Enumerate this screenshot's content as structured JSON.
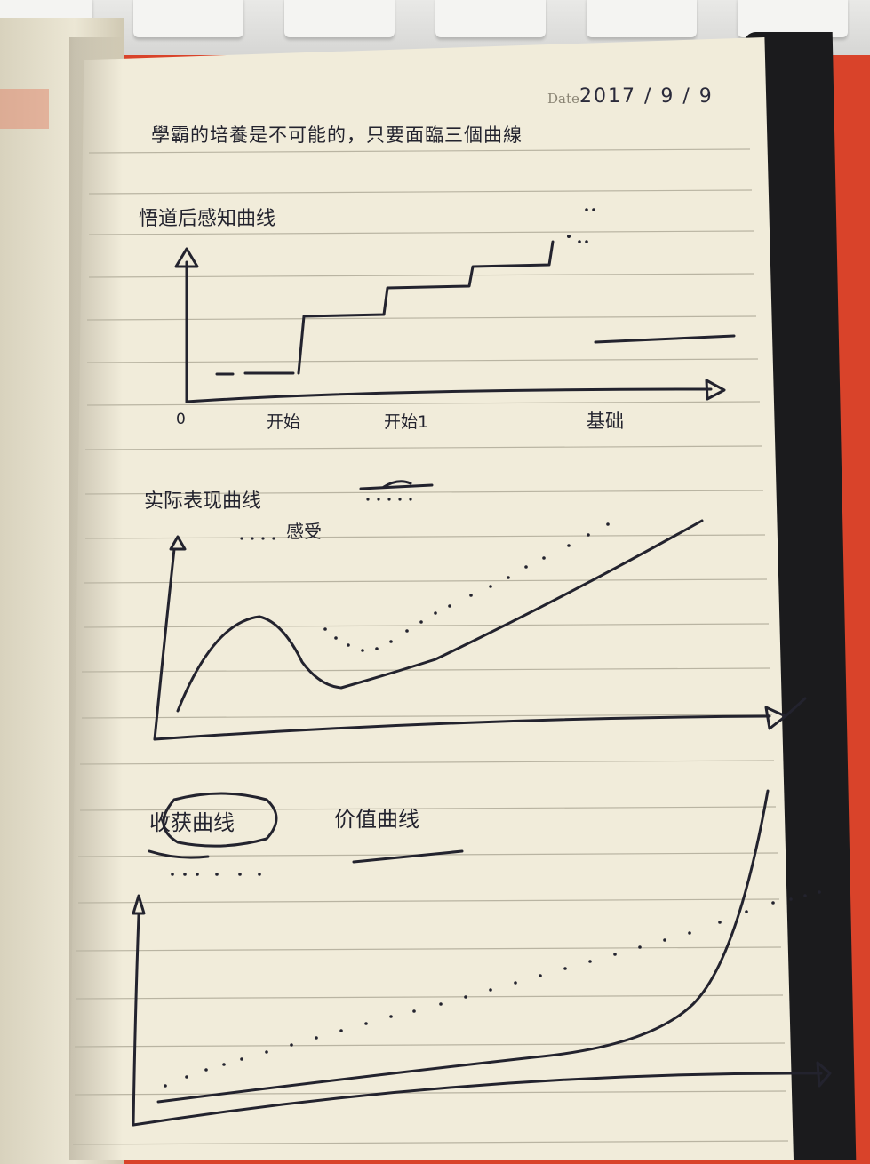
{
  "header": {
    "date_label": "Date",
    "date_value": "2017 / 9 / 9",
    "title": "學霸的培養是不可能的，只要面臨三個曲線"
  },
  "sections": [
    {
      "heading": "悟道后感知曲线",
      "axis_labels": [
        "0",
        "开始",
        "开始1",
        "基础"
      ]
    },
    {
      "heading": "实际表现曲线",
      "note": "感受"
    },
    {
      "heading": "收获曲线",
      "heading2": "价值曲线"
    }
  ],
  "colors": {
    "ink": "#23232e",
    "paper": "#f1ecda",
    "rule": "#b9b4a2",
    "desk": "#d9432a"
  }
}
